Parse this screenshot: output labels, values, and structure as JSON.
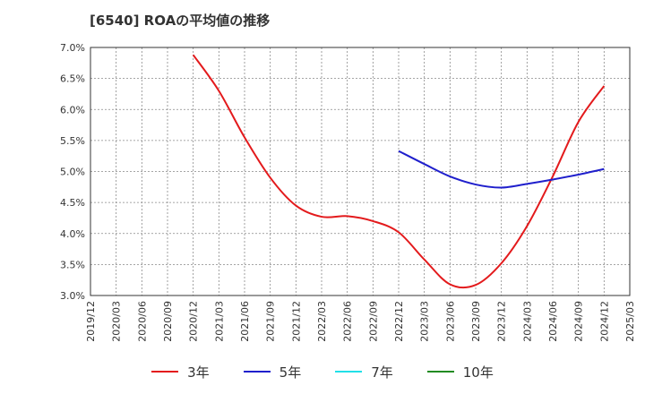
{
  "chart_data": {
    "type": "line",
    "title": "[6540]  ROAの平均値の推移",
    "xlabel": "",
    "ylabel": "",
    "ylim": [
      3.0,
      7.0
    ],
    "y_ticks": [
      "7.0%",
      "6.5%",
      "6.0%",
      "5.5%",
      "5.0%",
      "4.5%",
      "4.0%",
      "3.5%",
      "3.0%"
    ],
    "categories": [
      "2019/12",
      "2020/03",
      "2020/06",
      "2020/09",
      "2020/12",
      "2021/03",
      "2021/06",
      "2021/09",
      "2021/12",
      "2022/03",
      "2022/06",
      "2022/09",
      "2022/12",
      "2023/03",
      "2023/06",
      "2023/09",
      "2023/12",
      "2024/03",
      "2024/06",
      "2024/09",
      "2024/12",
      "2025/03"
    ],
    "grid": true,
    "legend_position": "bottom",
    "series": [
      {
        "name": "3年",
        "color": "#e31a1c",
        "values": [
          null,
          null,
          null,
          null,
          6.88,
          6.3,
          5.55,
          4.9,
          4.45,
          4.27,
          4.28,
          4.2,
          4.02,
          3.58,
          3.18,
          3.17,
          3.52,
          4.12,
          4.92,
          5.8,
          6.38,
          null
        ]
      },
      {
        "name": "5年",
        "color": "#1f1fcc",
        "values": [
          null,
          null,
          null,
          null,
          null,
          null,
          null,
          null,
          null,
          null,
          null,
          null,
          5.33,
          5.12,
          4.92,
          4.79,
          4.74,
          4.8,
          4.87,
          4.95,
          5.04,
          null
        ]
      },
      {
        "name": "7年",
        "color": "#22e0e8",
        "values": [
          null,
          null,
          null,
          null,
          null,
          null,
          null,
          null,
          null,
          null,
          null,
          null,
          null,
          null,
          null,
          null,
          null,
          null,
          null,
          null,
          null,
          null
        ]
      },
      {
        "name": "10年",
        "color": "#228b22",
        "values": [
          null,
          null,
          null,
          null,
          null,
          null,
          null,
          null,
          null,
          null,
          null,
          null,
          null,
          null,
          null,
          null,
          null,
          null,
          null,
          null,
          null,
          null
        ]
      }
    ]
  }
}
